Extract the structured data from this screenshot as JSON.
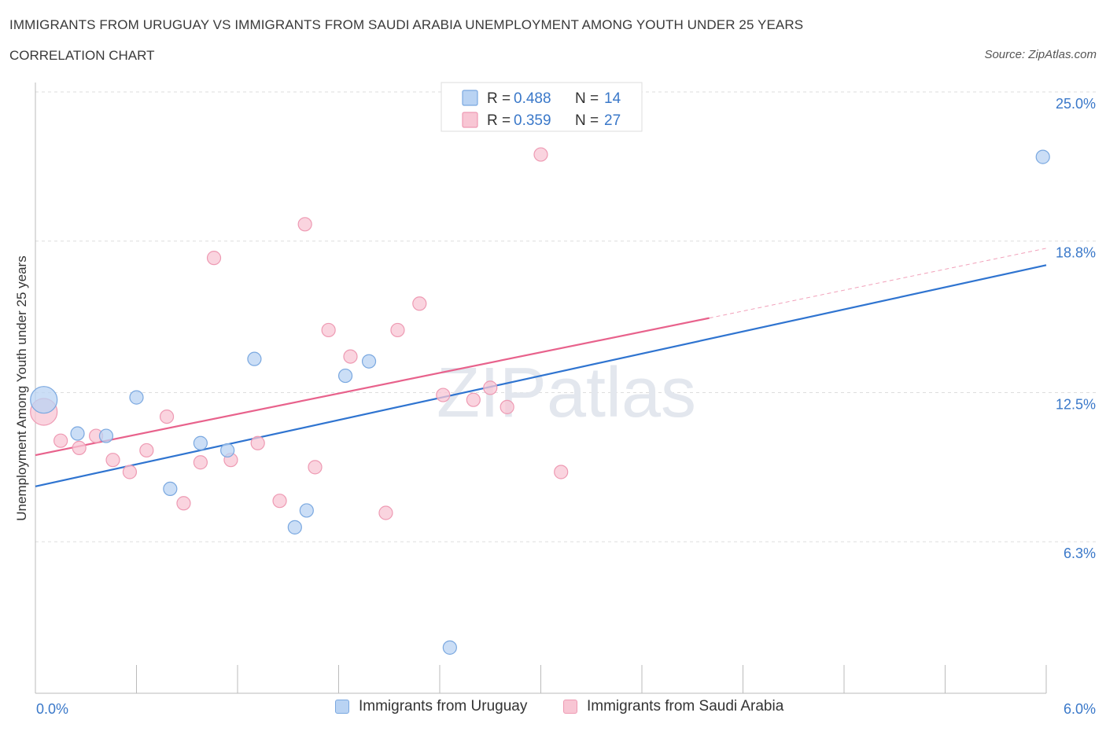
{
  "header": {
    "title": "IMMIGRANTS FROM URUGUAY VS IMMIGRANTS FROM SAUDI ARABIA UNEMPLOYMENT AMONG YOUTH UNDER 25 YEARS",
    "subtitle": "CORRELATION CHART",
    "source": "Source: ZipAtlas.com"
  },
  "watermark": "ZIPatlas",
  "colors": {
    "uruguay_fill": "#b9d3f3",
    "uruguay_stroke": "#7aa8e0",
    "uruguay_line": "#2f74d0",
    "saudi_fill": "#f8c6d4",
    "saudi_stroke": "#ee9ab3",
    "saudi_line": "#e8628c",
    "value_text": "#3a78c9",
    "grid": "#dddddd"
  },
  "legend_top": {
    "rows": [
      {
        "r_label": "R =",
        "r_value": "0.488",
        "n_label": "N =",
        "n_value": "14"
      },
      {
        "r_label": "R =",
        "r_value": "0.359",
        "n_label": "N =",
        "n_value": "27"
      }
    ]
  },
  "legend_bottom": {
    "items": [
      {
        "label": "Immigrants from Uruguay"
      },
      {
        "label": "Immigrants from Saudi Arabia"
      }
    ]
  },
  "chart_data": {
    "type": "scatter",
    "title": "IMMIGRANTS FROM URUGUAY VS IMMIGRANTS FROM SAUDI ARABIA UNEMPLOYMENT AMONG YOUTH UNDER 25 YEARS",
    "xlabel": "",
    "ylabel": "Unemployment Among Youth under 25 years",
    "xlim": [
      0.0,
      6.0
    ],
    "ylim": [
      0.0,
      25.0
    ],
    "x_tick_labels": [
      "0.0%",
      "6.0%"
    ],
    "y_ticks": [
      6.3,
      12.5,
      18.8,
      25.0
    ],
    "y_tick_labels": [
      "6.3%",
      "12.5%",
      "18.8%",
      "25.0%"
    ],
    "grid": true,
    "series": [
      {
        "name": "Immigrants from Uruguay",
        "R": 0.488,
        "N": 14,
        "points": [
          {
            "x": 0.05,
            "y": 12.2,
            "big": true
          },
          {
            "x": 0.25,
            "y": 10.8
          },
          {
            "x": 0.42,
            "y": 10.7
          },
          {
            "x": 0.6,
            "y": 12.3
          },
          {
            "x": 0.8,
            "y": 8.5
          },
          {
            "x": 0.98,
            "y": 10.4
          },
          {
            "x": 1.14,
            "y": 10.1
          },
          {
            "x": 1.3,
            "y": 13.9
          },
          {
            "x": 1.54,
            "y": 6.9
          },
          {
            "x": 1.61,
            "y": 7.6
          },
          {
            "x": 1.84,
            "y": 13.2
          },
          {
            "x": 1.98,
            "y": 13.8
          },
          {
            "x": 2.46,
            "y": 1.9
          },
          {
            "x": 5.98,
            "y": 22.3
          }
        ],
        "trend": {
          "x0": 0.0,
          "y0": 8.6,
          "x1": 6.0,
          "y1": 17.8
        }
      },
      {
        "name": "Immigrants from Saudi Arabia",
        "R": 0.359,
        "N": 27,
        "points": [
          {
            "x": 0.05,
            "y": 11.7,
            "big": true
          },
          {
            "x": 0.15,
            "y": 10.5
          },
          {
            "x": 0.26,
            "y": 10.2
          },
          {
            "x": 0.36,
            "y": 10.7
          },
          {
            "x": 0.46,
            "y": 9.7
          },
          {
            "x": 0.56,
            "y": 9.2
          },
          {
            "x": 0.66,
            "y": 10.1
          },
          {
            "x": 0.78,
            "y": 11.5
          },
          {
            "x": 0.88,
            "y": 7.9
          },
          {
            "x": 0.98,
            "y": 9.6
          },
          {
            "x": 1.06,
            "y": 18.1
          },
          {
            "x": 1.16,
            "y": 9.7
          },
          {
            "x": 1.32,
            "y": 10.4
          },
          {
            "x": 1.45,
            "y": 8.0
          },
          {
            "x": 1.6,
            "y": 19.5
          },
          {
            "x": 1.66,
            "y": 9.4
          },
          {
            "x": 1.74,
            "y": 15.1
          },
          {
            "x": 1.87,
            "y": 14.0
          },
          {
            "x": 2.08,
            "y": 7.5
          },
          {
            "x": 2.15,
            "y": 15.1
          },
          {
            "x": 2.28,
            "y": 16.2
          },
          {
            "x": 2.42,
            "y": 12.4
          },
          {
            "x": 2.6,
            "y": 12.2
          },
          {
            "x": 2.7,
            "y": 12.7
          },
          {
            "x": 2.8,
            "y": 11.9
          },
          {
            "x": 3.0,
            "y": 22.4
          },
          {
            "x": 3.12,
            "y": 9.2
          }
        ],
        "trend": {
          "x0": 0.0,
          "y0": 9.9,
          "x1": 4.0,
          "y1": 15.6
        },
        "trend_dashed_to": {
          "x1": 6.0,
          "y1": 18.5
        }
      }
    ]
  }
}
